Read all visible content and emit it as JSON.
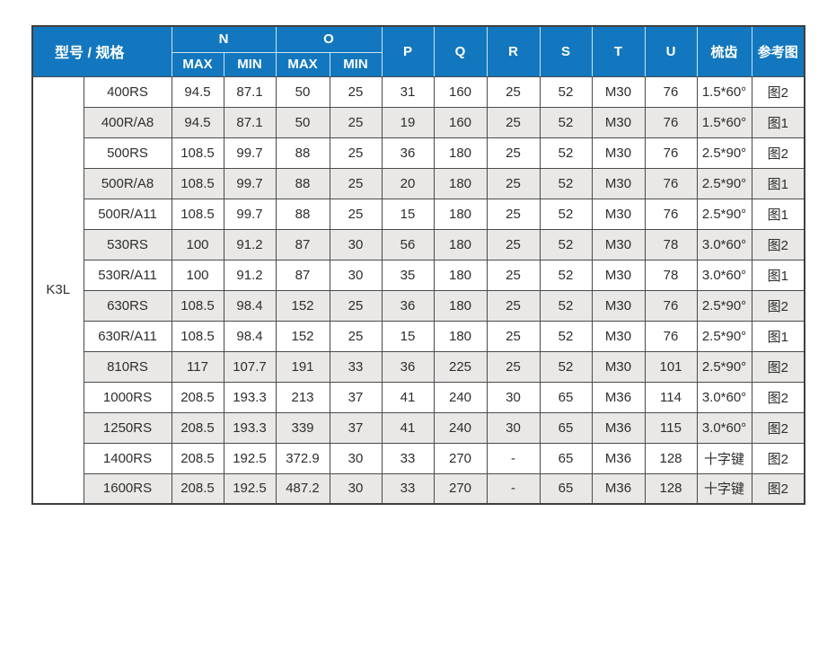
{
  "table": {
    "group_label": "K3L",
    "header": {
      "model_spec": "型号 / 规格",
      "n": "N",
      "o": "O",
      "max": "MAX",
      "min": "MIN",
      "p": "P",
      "q": "Q",
      "r": "R",
      "s": "S",
      "t": "T",
      "u": "U",
      "comb": "梳齿",
      "ref": "参考图"
    },
    "rows": [
      {
        "model": "400RS",
        "n_max": "94.5",
        "n_min": "87.1",
        "o_max": "50",
        "o_min": "25",
        "p": "31",
        "q": "160",
        "r": "25",
        "s": "52",
        "t": "M30",
        "u": "76",
        "comb": "1.5*60°",
        "ref": "图2"
      },
      {
        "model": "400R/A8",
        "n_max": "94.5",
        "n_min": "87.1",
        "o_max": "50",
        "o_min": "25",
        "p": "19",
        "q": "160",
        "r": "25",
        "s": "52",
        "t": "M30",
        "u": "76",
        "comb": "1.5*60°",
        "ref": "图1"
      },
      {
        "model": "500RS",
        "n_max": "108.5",
        "n_min": "99.7",
        "o_max": "88",
        "o_min": "25",
        "p": "36",
        "q": "180",
        "r": "25",
        "s": "52",
        "t": "M30",
        "u": "76",
        "comb": "2.5*90°",
        "ref": "图2"
      },
      {
        "model": "500R/A8",
        "n_max": "108.5",
        "n_min": "99.7",
        "o_max": "88",
        "o_min": "25",
        "p": "20",
        "q": "180",
        "r": "25",
        "s": "52",
        "t": "M30",
        "u": "76",
        "comb": "2.5*90°",
        "ref": "图1"
      },
      {
        "model": "500R/A11",
        "n_max": "108.5",
        "n_min": "99.7",
        "o_max": "88",
        "o_min": "25",
        "p": "15",
        "q": "180",
        "r": "25",
        "s": "52",
        "t": "M30",
        "u": "76",
        "comb": "2.5*90°",
        "ref": "图1"
      },
      {
        "model": "530RS",
        "n_max": "100",
        "n_min": "91.2",
        "o_max": "87",
        "o_min": "30",
        "p": "56",
        "q": "180",
        "r": "25",
        "s": "52",
        "t": "M30",
        "u": "78",
        "comb": "3.0*60°",
        "ref": "图2"
      },
      {
        "model": "530R/A11",
        "n_max": "100",
        "n_min": "91.2",
        "o_max": "87",
        "o_min": "30",
        "p": "35",
        "q": "180",
        "r": "25",
        "s": "52",
        "t": "M30",
        "u": "78",
        "comb": "3.0*60°",
        "ref": "图1"
      },
      {
        "model": "630RS",
        "n_max": "108.5",
        "n_min": "98.4",
        "o_max": "152",
        "o_min": "25",
        "p": "36",
        "q": "180",
        "r": "25",
        "s": "52",
        "t": "M30",
        "u": "76",
        "comb": "2.5*90°",
        "ref": "图2"
      },
      {
        "model": "630R/A11",
        "n_max": "108.5",
        "n_min": "98.4",
        "o_max": "152",
        "o_min": "25",
        "p": "15",
        "q": "180",
        "r": "25",
        "s": "52",
        "t": "M30",
        "u": "76",
        "comb": "2.5*90°",
        "ref": "图1"
      },
      {
        "model": "810RS",
        "n_max": "117",
        "n_min": "107.7",
        "o_max": "191",
        "o_min": "33",
        "p": "36",
        "q": "225",
        "r": "25",
        "s": "52",
        "t": "M30",
        "u": "101",
        "comb": "2.5*90°",
        "ref": "图2"
      },
      {
        "model": "1000RS",
        "n_max": "208.5",
        "n_min": "193.3",
        "o_max": "213",
        "o_min": "37",
        "p": "41",
        "q": "240",
        "r": "30",
        "s": "65",
        "t": "M36",
        "u": "114",
        "comb": "3.0*60°",
        "ref": "图2"
      },
      {
        "model": "1250RS",
        "n_max": "208.5",
        "n_min": "193.3",
        "o_max": "339",
        "o_min": "37",
        "p": "41",
        "q": "240",
        "r": "30",
        "s": "65",
        "t": "M36",
        "u": "115",
        "comb": "3.0*60°",
        "ref": "图2"
      },
      {
        "model": "1400RS",
        "n_max": "208.5",
        "n_min": "192.5",
        "o_max": "372.9",
        "o_min": "30",
        "p": "33",
        "q": "270",
        "r": "-",
        "s": "65",
        "t": "M36",
        "u": "128",
        "comb": "十字键",
        "ref": "图2"
      },
      {
        "model": "1600RS",
        "n_max": "208.5",
        "n_min": "192.5",
        "o_max": "487.2",
        "o_min": "30",
        "p": "33",
        "q": "270",
        "r": "-",
        "s": "65",
        "t": "M36",
        "u": "128",
        "comb": "十字键",
        "ref": "图2"
      }
    ]
  },
  "colors": {
    "header_bg": "#1277BE",
    "header_text": "#FFFFFF",
    "header_divider": "#C9E6F6",
    "body_border": "#4A4A4A",
    "stripe_gray": "#E9E8E6",
    "body_text": "#2E2E2E",
    "page_bg": "#FFFFFF"
  }
}
